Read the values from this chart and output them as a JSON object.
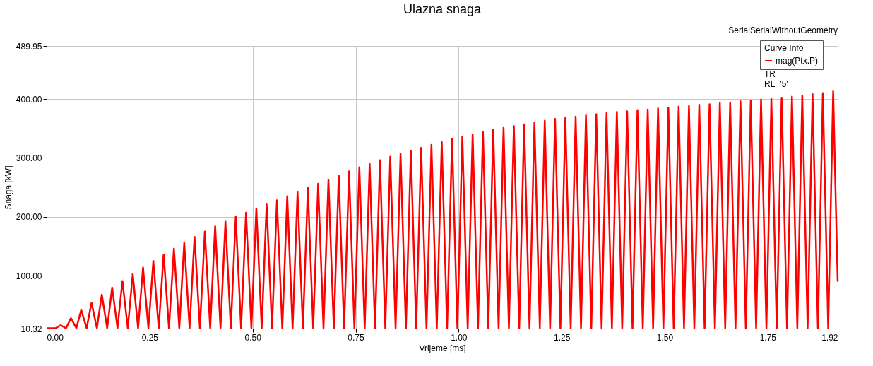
{
  "chart_data": {
    "type": "line",
    "title": "Ulazna snaga",
    "xlabel": "Vrijeme [ms]",
    "ylabel": "Snaga [kW]",
    "legend_title": "Curve Info",
    "annotations": [
      "SerialSerialWithoutGeometry",
      "TR",
      "RL='5'"
    ],
    "series": [
      {
        "name": "mag(Ptx.P)",
        "color": "#ff0000",
        "x": [
          0,
          0.022,
          0.034,
          0.047,
          0.059,
          0.072,
          0.084,
          0.097,
          0.109,
          0.122,
          0.134,
          0.147,
          0.159,
          0.172,
          0.184,
          0.197,
          0.209,
          0.222,
          0.234,
          0.247,
          0.259,
          0.272,
          0.284,
          0.297,
          0.309,
          0.322,
          0.334,
          0.347,
          0.359,
          0.372,
          0.384,
          0.397,
          0.409,
          0.422,
          0.434,
          0.447,
          0.459,
          0.472,
          0.484,
          0.497,
          0.509,
          0.522,
          0.534,
          0.547,
          0.559,
          0.572,
          0.584,
          0.597,
          0.609,
          0.622,
          0.634,
          0.647,
          0.659,
          0.672,
          0.684,
          0.697,
          0.709,
          0.722,
          0.734,
          0.747,
          0.759,
          0.772,
          0.784,
          0.797,
          0.809,
          0.822,
          0.834,
          0.847,
          0.859,
          0.872,
          0.884,
          0.897,
          0.909,
          0.922,
          0.934,
          0.947,
          0.959,
          0.972,
          0.984,
          0.997,
          1.009,
          1.022,
          1.034,
          1.047,
          1.059,
          1.072,
          1.084,
          1.097,
          1.109,
          1.122,
          1.134,
          1.147,
          1.159,
          1.172,
          1.184,
          1.197,
          1.209,
          1.222,
          1.234,
          1.247,
          1.259,
          1.272,
          1.284,
          1.297,
          1.309,
          1.322,
          1.334,
          1.347,
          1.359,
          1.372,
          1.384,
          1.397,
          1.409,
          1.422,
          1.434,
          1.447,
          1.459,
          1.472,
          1.484,
          1.497,
          1.509,
          1.522,
          1.534,
          1.547,
          1.559,
          1.572,
          1.584,
          1.597,
          1.609,
          1.622,
          1.634,
          1.647,
          1.659,
          1.672,
          1.684,
          1.697,
          1.709,
          1.722,
          1.734,
          1.747,
          1.759,
          1.772,
          1.784,
          1.797,
          1.809,
          1.822,
          1.834,
          1.847,
          1.859,
          1.872,
          1.884,
          1.897,
          1.909,
          1.92
        ],
        "values": [
          11,
          11,
          16,
          11,
          28,
          11,
          42,
          11,
          54,
          11,
          68,
          11,
          80,
          11,
          91,
          11,
          103,
          11,
          114,
          11,
          125,
          11,
          136,
          11,
          146,
          11,
          156,
          11,
          166,
          11,
          175,
          11,
          184,
          11,
          192,
          11,
          200,
          11,
          207,
          11,
          214,
          11,
          221,
          11,
          228,
          11,
          235,
          11,
          242,
          11,
          249,
          11,
          256,
          11,
          263,
          11,
          270,
          11,
          277,
          11,
          284,
          11,
          290,
          11,
          296,
          11,
          302,
          11,
          307,
          11,
          312,
          11,
          317,
          11,
          322,
          11,
          327,
          11,
          332,
          11,
          336,
          11,
          340,
          11,
          344,
          11,
          348,
          11,
          351,
          11,
          354,
          11,
          357,
          11,
          360,
          11,
          363,
          11,
          366,
          11,
          368,
          11,
          370,
          11,
          372,
          11,
          374,
          11,
          376,
          11,
          378,
          11,
          379,
          11,
          381,
          11,
          382,
          11,
          384,
          11,
          385,
          11,
          387,
          11,
          388,
          11,
          390,
          11,
          391,
          11,
          393,
          11,
          394,
          11,
          396,
          11,
          397,
          11,
          399,
          11,
          400,
          11,
          402,
          11,
          404,
          11,
          406,
          11,
          408,
          11,
          410,
          11,
          413,
          90
        ]
      }
    ],
    "xlim": [
      0,
      1.92
    ],
    "xticks": [
      {
        "value": 0,
        "label": "0.00"
      },
      {
        "value": 0.25,
        "label": "0.25"
      },
      {
        "value": 0.5,
        "label": "0.50"
      },
      {
        "value": 0.75,
        "label": "0.75"
      },
      {
        "value": 1,
        "label": "1.00"
      },
      {
        "value": 1.25,
        "label": "1.25"
      },
      {
        "value": 1.5,
        "label": "1.50"
      },
      {
        "value": 1.75,
        "label": "1.75"
      },
      1.92
    ],
    "ylim": [
      10.32,
      489.95
    ],
    "yticks": [
      10.32,
      {
        "value": 100,
        "label": "100.00"
      },
      {
        "value": 200,
        "label": "200.00"
      },
      {
        "value": 300,
        "label": "300.00"
      },
      {
        "value": 400,
        "label": "400.00"
      },
      489.95
    ],
    "grid": true,
    "legend": "top right",
    "line_style": "solid",
    "marker": "none"
  }
}
